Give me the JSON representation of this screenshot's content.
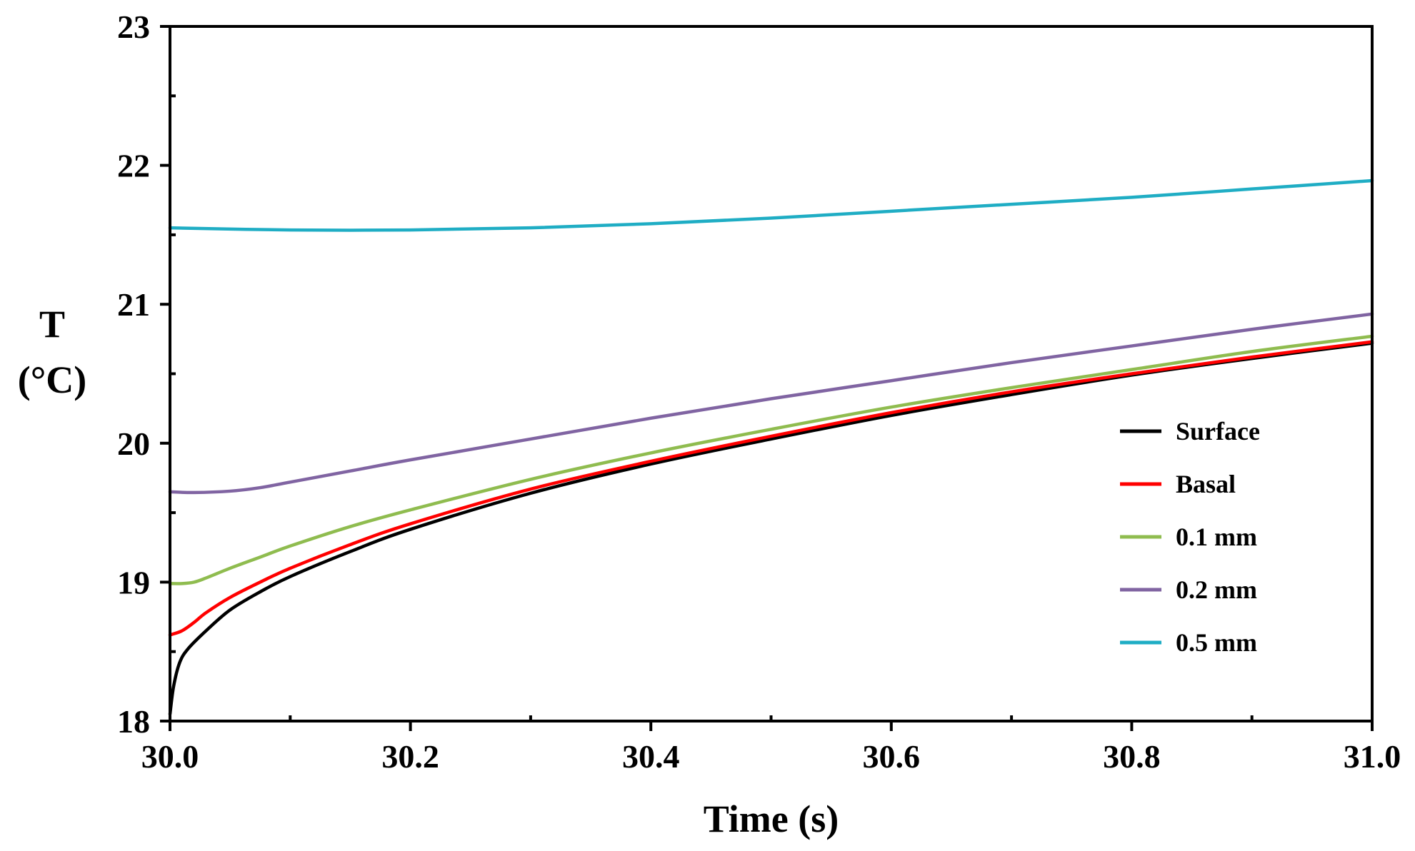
{
  "chart_data": {
    "type": "line",
    "title": "",
    "xlabel": "Time (s)",
    "ylabel_line1": "T",
    "ylabel_line2": "(°C)",
    "xlim": [
      30.0,
      31.0
    ],
    "ylim": [
      18,
      23
    ],
    "x_ticks": [
      30.0,
      30.2,
      30.4,
      30.6,
      30.8,
      31.0
    ],
    "x_tick_labels": [
      "30.0",
      "30.2",
      "30.4",
      "30.6",
      "30.8",
      "31.0"
    ],
    "x_minor_step": 0.1,
    "y_ticks": [
      18,
      19,
      20,
      21,
      22,
      23
    ],
    "y_tick_labels": [
      "18",
      "19",
      "20",
      "21",
      "22",
      "23"
    ],
    "y_minor_step": 0.5,
    "grid": false,
    "legend_position": "right",
    "series": [
      {
        "name": "Surface",
        "color": "#000000",
        "x": [
          30.0,
          30.003,
          30.008,
          30.015,
          30.03,
          30.05,
          30.075,
          30.1,
          30.15,
          30.2,
          30.3,
          30.4,
          30.5,
          30.6,
          30.7,
          30.8,
          30.9,
          31.0
        ],
        "y": [
          18.05,
          18.25,
          18.42,
          18.52,
          18.65,
          18.8,
          18.93,
          19.04,
          19.22,
          19.38,
          19.64,
          19.85,
          20.03,
          20.2,
          20.35,
          20.49,
          20.61,
          20.72
        ]
      },
      {
        "name": "Basal",
        "color": "#ff0000",
        "x": [
          30.0,
          30.01,
          30.02,
          30.03,
          30.05,
          30.075,
          30.1,
          30.15,
          30.2,
          30.3,
          30.4,
          30.5,
          30.6,
          30.7,
          30.8,
          30.9,
          31.0
        ],
        "y": [
          18.62,
          18.65,
          18.71,
          18.78,
          18.89,
          19.0,
          19.1,
          19.27,
          19.42,
          19.67,
          19.87,
          20.05,
          20.22,
          20.37,
          20.5,
          20.62,
          20.73
        ]
      },
      {
        "name": "0.1 mm",
        "color": "#8fbc4f",
        "x": [
          30.0,
          30.01,
          30.02,
          30.03,
          30.05,
          30.075,
          30.1,
          30.15,
          30.2,
          30.3,
          30.4,
          30.5,
          30.6,
          30.7,
          30.8,
          30.9,
          31.0
        ],
        "y": [
          18.99,
          18.99,
          19.0,
          19.03,
          19.1,
          19.18,
          19.26,
          19.4,
          19.52,
          19.74,
          19.93,
          20.1,
          20.26,
          20.4,
          20.53,
          20.66,
          20.77
        ]
      },
      {
        "name": "0.2 mm",
        "color": "#8064a2",
        "x": [
          30.0,
          30.02,
          30.05,
          30.075,
          30.1,
          30.15,
          30.2,
          30.3,
          30.4,
          30.5,
          30.6,
          30.7,
          30.8,
          30.9,
          31.0
        ],
        "y": [
          19.65,
          19.645,
          19.655,
          19.68,
          19.72,
          19.8,
          19.88,
          20.03,
          20.18,
          20.32,
          20.45,
          20.58,
          20.7,
          20.82,
          20.93
        ]
      },
      {
        "name": "0.5 mm",
        "color": "#1fadc4",
        "x": [
          30.0,
          30.1,
          30.2,
          30.3,
          30.4,
          30.5,
          30.6,
          30.7,
          30.8,
          30.9,
          31.0
        ],
        "y": [
          21.55,
          21.535,
          21.535,
          21.55,
          21.58,
          21.62,
          21.67,
          21.72,
          21.77,
          21.83,
          21.89
        ]
      }
    ]
  }
}
